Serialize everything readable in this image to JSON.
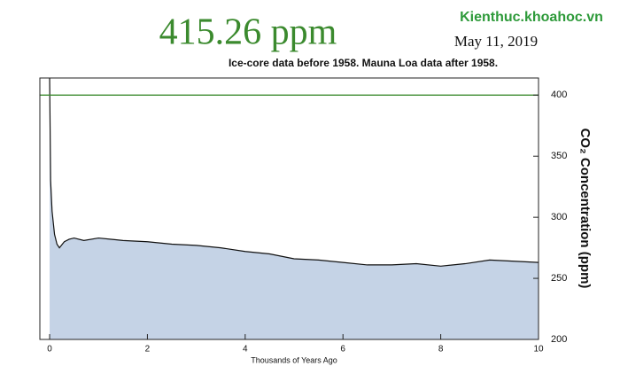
{
  "chart_data": {
    "type": "area",
    "title": "415.26 ppm",
    "date": "May 11, 2019",
    "subtitle": "Ice-core data before 1958. Mauna Loa data after 1958.",
    "watermark": "Kienthuc.khoahoc.vn",
    "x_label": "Thousands of Years Ago",
    "y_label": "CO₂ Concentration (ppm)",
    "x": [
      0,
      0.02,
      0.05,
      0.1,
      0.15,
      0.2,
      0.3,
      0.4,
      0.5,
      0.7,
      1,
      1.5,
      2,
      2.5,
      3,
      3.5,
      4,
      4.5,
      5,
      5.5,
      6,
      6.5,
      7,
      7.5,
      8,
      8.5,
      9,
      9.5,
      10
    ],
    "values": [
      414,
      330,
      305,
      286,
      278,
      275,
      280,
      282,
      283,
      281,
      283,
      281,
      280,
      278,
      277,
      275,
      272,
      270,
      266,
      265,
      263,
      261,
      261,
      262,
      260,
      262,
      265,
      264,
      263
    ],
    "color": "#c5d3e6",
    "line_color": "#111111",
    "reference_line": 400,
    "reference_color": "#3b8a2e",
    "xlim": [
      -0.2,
      10
    ],
    "xticks": [
      0,
      2,
      4,
      6,
      8,
      10
    ],
    "ylim": [
      200,
      414
    ],
    "yticks": [
      200,
      250,
      300,
      350,
      400
    ]
  }
}
